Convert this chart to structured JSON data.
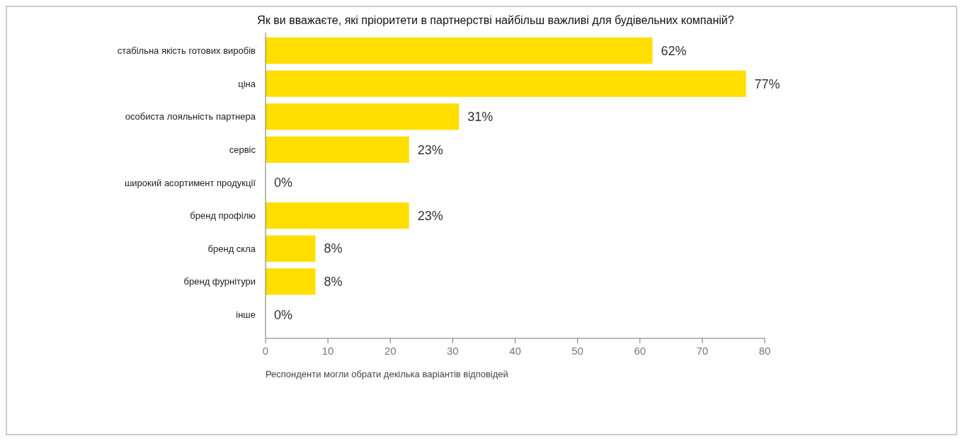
{
  "chart_data": {
    "type": "bar",
    "orientation": "horizontal",
    "title": "Як ви вважаєте, які пріоритети в партнерстві найбільш важливі для будівельних компаній?",
    "categories": [
      "стабільна якість готових виробів",
      "ціна",
      "особиста лояльність партнера",
      "сервіс",
      "широкий асортимент продукції",
      "бренд профілю",
      "бренд скла",
      "бренд фурнітури",
      "інше"
    ],
    "values": [
      62,
      77,
      31,
      23,
      0,
      23,
      8,
      8,
      0
    ],
    "value_labels": [
      "62%",
      "77%",
      "31%",
      "23%",
      "0%",
      "23%",
      "8%",
      "8%",
      "0%"
    ],
    "color": "#ffde00",
    "xlim": [
      0,
      80
    ],
    "xticks": [
      0,
      10,
      20,
      30,
      40,
      50,
      60,
      70,
      80
    ],
    "annotations": [
      "Респонденти могли обрати декілька варіантів відповідей"
    ]
  }
}
